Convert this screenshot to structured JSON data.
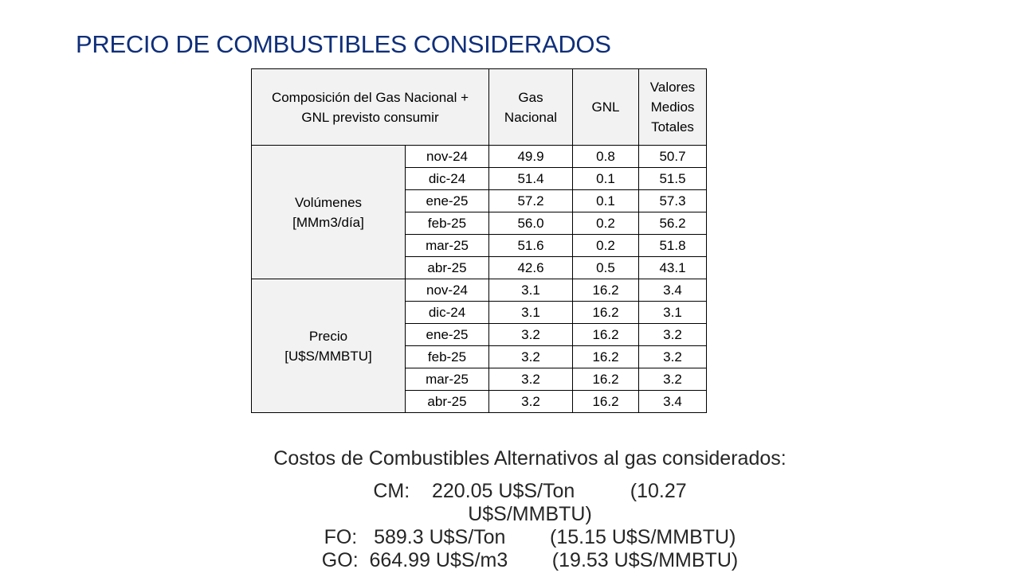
{
  "title": "PRECIO DE COMBUSTIBLES CONSIDERADOS",
  "table": {
    "header": {
      "composition": "Composición del Gas Nacional + GNL previsto consumir",
      "gas_nacional": "Gas Nacional",
      "gnl": "GNL",
      "totales": "Valores Medios Totales"
    },
    "groups": [
      {
        "label": "Volúmenes [MMm3/día]",
        "rows": [
          {
            "month": "nov-24",
            "gas": "49.9",
            "gnl": "0.8",
            "total": "50.7"
          },
          {
            "month": "dic-24",
            "gas": "51.4",
            "gnl": "0.1",
            "total": "51.5"
          },
          {
            "month": "ene-25",
            "gas": "57.2",
            "gnl": "0.1",
            "total": "57.3"
          },
          {
            "month": "feb-25",
            "gas": "56.0",
            "gnl": "0.2",
            "total": "56.2"
          },
          {
            "month": "mar-25",
            "gas": "51.6",
            "gnl": "0.2",
            "total": "51.8"
          },
          {
            "month": "abr-25",
            "gas": "42.6",
            "gnl": "0.5",
            "total": "43.1"
          }
        ]
      },
      {
        "label": "Precio [U$S/MMBTU]",
        "rows": [
          {
            "month": "nov-24",
            "gas": "3.1",
            "gnl": "16.2",
            "total": "3.4"
          },
          {
            "month": "dic-24",
            "gas": "3.1",
            "gnl": "16.2",
            "total": "3.1"
          },
          {
            "month": "ene-25",
            "gas": "3.2",
            "gnl": "16.2",
            "total": "3.2"
          },
          {
            "month": "feb-25",
            "gas": "3.2",
            "gnl": "16.2",
            "total": "3.2"
          },
          {
            "month": "mar-25",
            "gas": "3.2",
            "gnl": "16.2",
            "total": "3.2"
          },
          {
            "month": "abr-25",
            "gas": "3.2",
            "gnl": "16.2",
            "total": "3.4"
          }
        ]
      }
    ]
  },
  "costs": {
    "heading": "Costos de Combustibles Alternativos al gas considerados:",
    "lines": [
      "CM:    220.05 U$S/Ton          (10.27",
      "U$S/MMBTU)",
      "FO:   589.3 U$S/Ton        (15.15 U$S/MMBTU)",
      "GO:  664.99 U$S/m3        (19.53 U$S/MMBTU)"
    ]
  }
}
